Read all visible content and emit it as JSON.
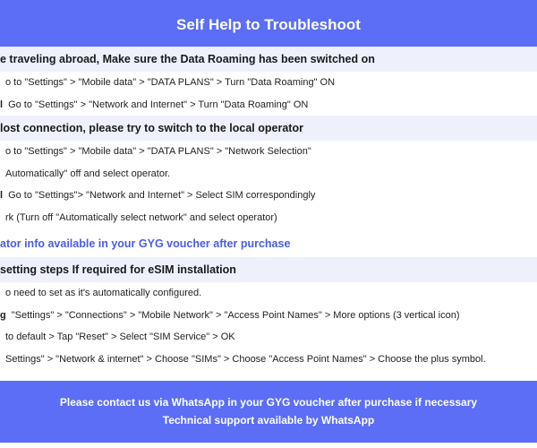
{
  "colors": {
    "primary": "#5b6ef5",
    "section_bg": "#eef1fb",
    "text": "#1a1a1a",
    "link": "#4a5de0",
    "white": "#ffffff"
  },
  "header": {
    "title": "Self Help to Troubleshoot",
    "bg": "#5b6ef5",
    "color": "#ffffff",
    "fontsize": 17
  },
  "sections": [
    {
      "title": "e traveling abroad, Make sure the Data Roaming has been switched on",
      "title_bg": "#eef1fb",
      "lines": [
        {
          "prefix": "",
          "text": "o to \"Settings\" > \"Mobile data\" > \"DATA PLANS\" > Turn \"Data Roaming\" ON"
        },
        {
          "prefix": "l",
          "text": "Go to \"Settings\" > \"Network and Internet\" > Turn \"Data Roaming\" ON"
        }
      ]
    },
    {
      "title": " lost connection, please try to switch to the local operator",
      "title_bg": "#eef1fb",
      "lines": [
        {
          "prefix": "",
          "text": "o to \"Settings\" > \"Mobile data\" > \"DATA PLANS\" > \"Network Selection\""
        },
        {
          "prefix": "",
          "text": "Automatically\" off and select operator."
        },
        {
          "prefix": "l",
          "text": "Go to \"Settings\">  \"Network and Internet\" > Select SIM correspondingly"
        },
        {
          "prefix": "",
          "text": "rk (Turn off \"Automatically select network\" and select operator)"
        }
      ]
    }
  ],
  "link": {
    "text": "ator info available in your GYG voucher after purchase",
    "color": "#4a5de0"
  },
  "section3": {
    "title": "setting steps If required for eSIM installation",
    "title_bg": "#eef1fb",
    "lines": [
      {
        "prefix": "",
        "text": "o need to set as it's automatically configured."
      },
      {
        "prefix": "g",
        "text": "\"Settings\" > \"Connections\" > \"Mobile Network\" > \"Access Point Names\" > More options (3 vertical icon)"
      },
      {
        "prefix": "",
        "text": "to default > Tap \"Reset\" > Select \"SIM Service\" > OK"
      },
      {
        "prefix": "",
        "text": "Settings\" > \"Network & internet\" > Choose \"SIMs\" > Choose \"Access Point Names\" > Choose the plus symbol."
      }
    ]
  },
  "footer": {
    "bg": "#5b6ef5",
    "line1": "Please contact us via WhatsApp  in your GYG voucher after purchase if necessary",
    "line2": "Technical support available by WhatsApp"
  }
}
